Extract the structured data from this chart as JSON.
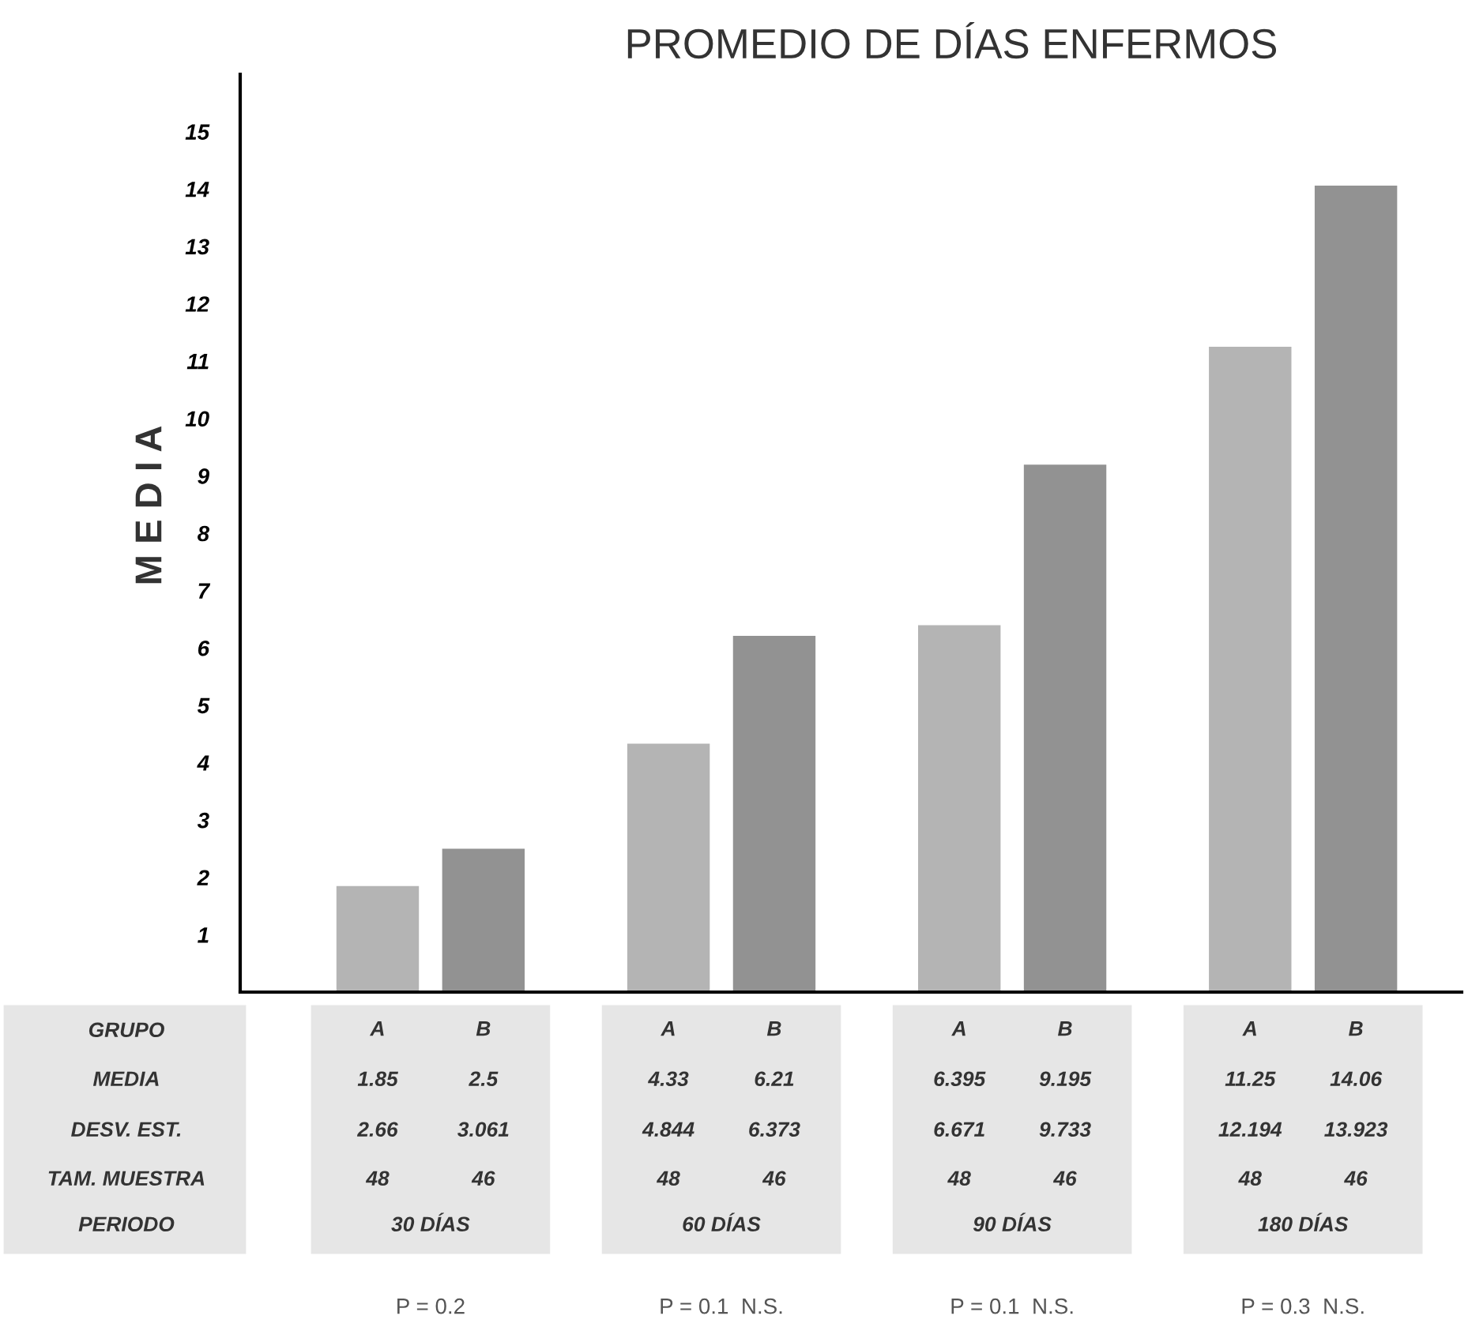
{
  "chart_data": {
    "type": "bar",
    "title": "PROMEDIO DE DÍAS ENFERMOS",
    "ylabel": "M E D I A",
    "categories": [
      "A",
      "B",
      "A",
      "B",
      "A",
      "B",
      "A",
      "B"
    ],
    "values": [
      1.85,
      2.5,
      4.33,
      6.21,
      6.395,
      9.195,
      11.25,
      14.06
    ],
    "colors": [
      "#b4b4b4",
      "#929292",
      "#b4b4b4",
      "#929292",
      "#b4b4b4",
      "#929292",
      "#b4b4b4",
      "#929292"
    ],
    "ylim": [
      0,
      16
    ],
    "yticks": [
      1,
      2,
      3,
      4,
      5,
      6,
      7,
      8,
      9,
      10,
      11,
      12,
      13,
      14,
      15
    ],
    "grid": false,
    "annotations": [
      "GRUPO",
      "MEDIA",
      "DESV. EST.",
      "TAM. MUESTRA",
      "PERIODO",
      "1.85",
      "2.5",
      "4.33",
      "6.21",
      "6.395",
      "9.195",
      "11.25",
      "14.06",
      "2.66",
      "3.061",
      "4.844",
      "6.373",
      "6.671",
      "9.733",
      "12.194",
      "13.923",
      "48",
      "46",
      "48",
      "46",
      "48",
      "46",
      "48",
      "46",
      "30 DÍAS",
      "60 DÍAS",
      "90 DÍAS",
      "180 DÍAS",
      "P = 0.2",
      "P = 0.1  N.S.",
      "P = 0.1  N.S.",
      "P = 0.3  N.S."
    ]
  }
}
